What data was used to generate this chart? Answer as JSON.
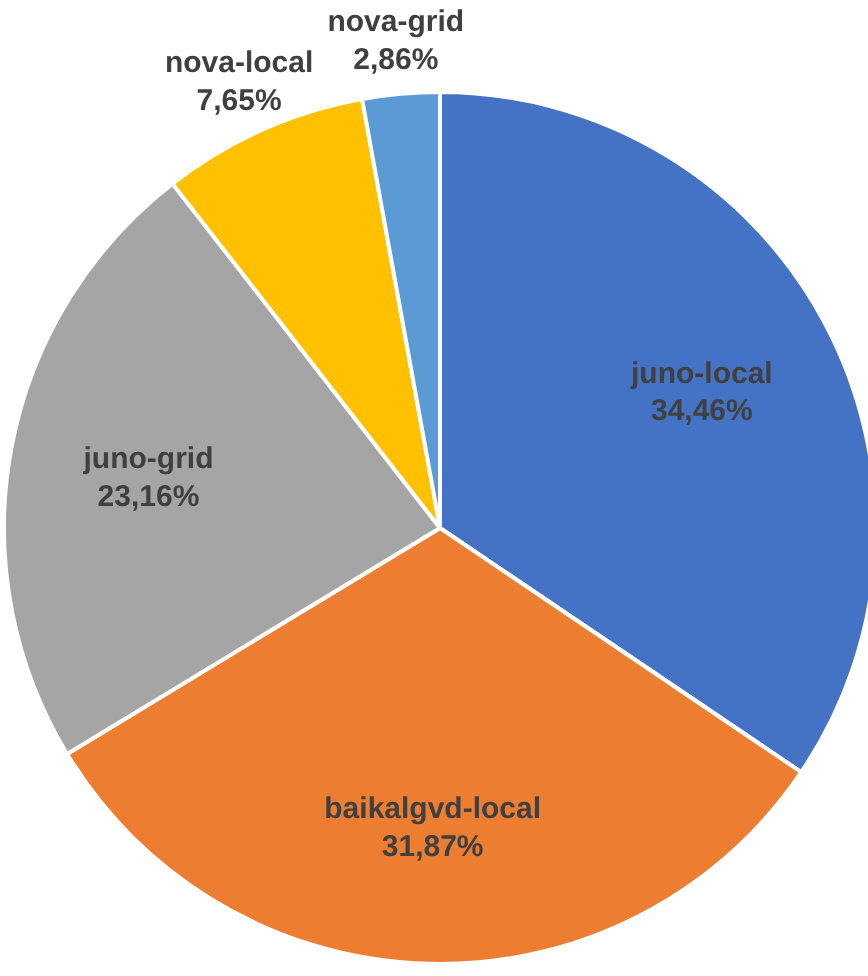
{
  "chart_data": {
    "type": "pie",
    "categories": [
      "juno-local",
      "baikalgvd-local",
      "juno-grid",
      "nova-local",
      "nova-grid"
    ],
    "values": [
      34.46,
      31.87,
      23.16,
      7.65,
      2.86
    ],
    "colors": [
      "#4472c4",
      "#ed7d31",
      "#a5a5a5",
      "#ffc000",
      "#5b9bd5"
    ],
    "value_labels": [
      "34,46%",
      "31,87%",
      "23,16%",
      "7,65%",
      "2,86%"
    ]
  }
}
